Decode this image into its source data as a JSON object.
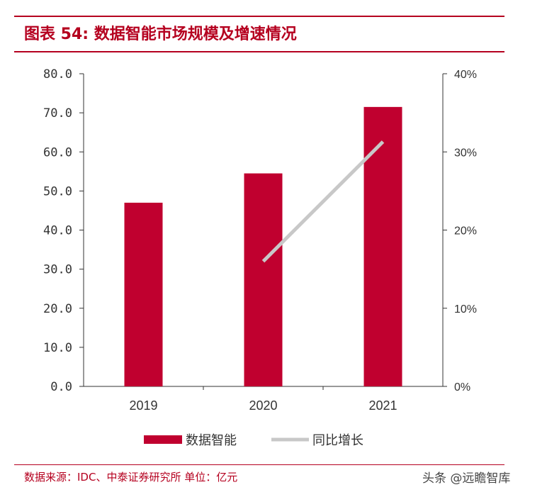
{
  "figure": {
    "label": "图表 54:",
    "title": "数据智能市场规模及增速情况"
  },
  "source": "数据来源：IDC、中泰证券研究所 单位：亿元",
  "watermark": "头条 @远瞻智库",
  "colors": {
    "bar": "#c0002f",
    "line": "#c8c8c8",
    "accent": "#b5001f"
  },
  "chart_data": {
    "type": "bar",
    "categories": [
      "2019",
      "2020",
      "2021"
    ],
    "series": [
      {
        "name": "数据智能",
        "type": "bar",
        "axis": "left",
        "values": [
          47.0,
          54.5,
          71.5
        ]
      },
      {
        "name": "同比增长",
        "type": "line",
        "axis": "right",
        "values": [
          null,
          0.16,
          0.313
        ]
      }
    ],
    "y_left": {
      "min": 0,
      "max": 80,
      "step": 10,
      "ticks": [
        "0.0",
        "10.0",
        "20.0",
        "30.0",
        "40.0",
        "50.0",
        "60.0",
        "70.0",
        "80.0"
      ]
    },
    "y_right": {
      "min": 0,
      "max": 0.4,
      "step": 0.1,
      "ticks": [
        "0%",
        "10%",
        "20%",
        "30%",
        "40%"
      ]
    },
    "legend": {
      "position": "bottom"
    },
    "grid": false
  }
}
